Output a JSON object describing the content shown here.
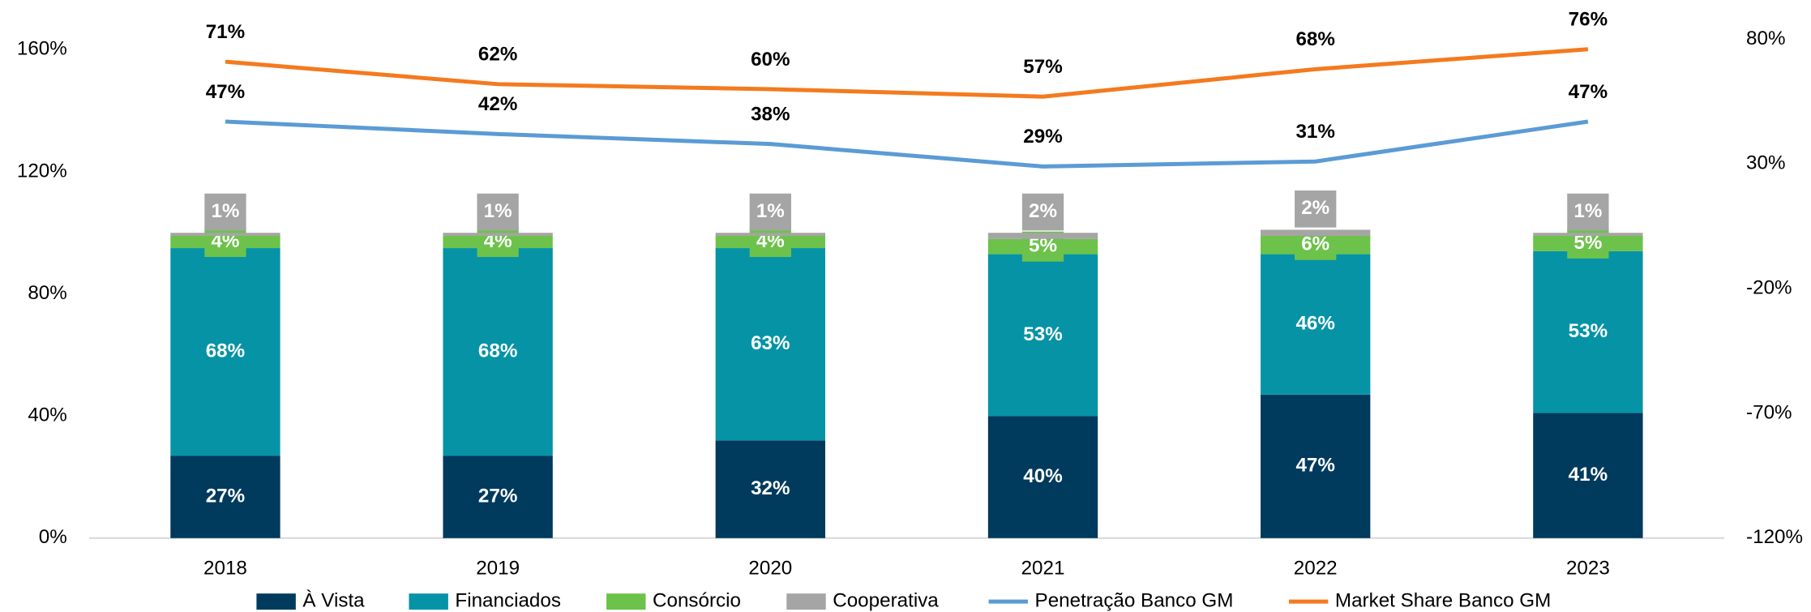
{
  "chart_data": {
    "type": "bar",
    "categories": [
      "2018",
      "2019",
      "2020",
      "2021",
      "2022",
      "2023"
    ],
    "series": [
      {
        "name": "À Vista",
        "color": "#003a5d",
        "values": [
          27,
          27,
          32,
          40,
          47,
          41
        ],
        "value_labels": [
          "27%",
          "27%",
          "32%",
          "40%",
          "47%",
          "41%"
        ]
      },
      {
        "name": "Financiados",
        "color": "#0693a6",
        "values": [
          68,
          68,
          63,
          53,
          46,
          53
        ],
        "value_labels": [
          "68%",
          "68%",
          "63%",
          "53%",
          "46%",
          "53%"
        ]
      },
      {
        "name": "Consórcio",
        "color": "#6cc24a",
        "values": [
          4,
          4,
          4,
          5,
          6,
          5
        ],
        "value_labels": [
          "4%",
          "4%",
          "4%",
          "5%",
          "6%",
          "5%"
        ]
      },
      {
        "name": "Cooperativa",
        "color": "#a5a5a5",
        "values": [
          1,
          1,
          1,
          2,
          2,
          1
        ],
        "value_labels": [
          "1%",
          "1%",
          "1%",
          "2%",
          "2%",
          "1%"
        ]
      },
      {
        "name": "Penetração Banco GM",
        "color": "#5b9bd5",
        "type": "line",
        "axis": "y2",
        "values": [
          47,
          42,
          38,
          29,
          31,
          47
        ],
        "value_labels": [
          "47%",
          "42%",
          "38%",
          "29%",
          "31%",
          "47%"
        ]
      },
      {
        "name": "Market Share Banco GM",
        "color": "#f47a1f",
        "type": "line",
        "axis": "y2",
        "values": [
          71,
          62,
          60,
          57,
          68,
          76
        ],
        "value_labels": [
          "71%",
          "62%",
          "60%",
          "57%",
          "68%",
          "76%"
        ]
      }
    ],
    "ylim": [
      0,
      160
    ],
    "yticks": [
      {
        "value": 0,
        "label": "0%"
      },
      {
        "value": 40,
        "label": "40%"
      },
      {
        "value": 80,
        "label": "80%"
      },
      {
        "value": 120,
        "label": "120%"
      },
      {
        "value": 160,
        "label": "160%"
      }
    ],
    "y2lim": [
      -120,
      80
    ],
    "y2ticks": [
      {
        "value": -120,
        "label": "-120%"
      },
      {
        "value": -70,
        "label": "-70%"
      },
      {
        "value": -20,
        "label": "-20%"
      },
      {
        "value": 30,
        "label": "30%"
      },
      {
        "value": 80,
        "label": "80%"
      }
    ],
    "legend": "bottom"
  }
}
